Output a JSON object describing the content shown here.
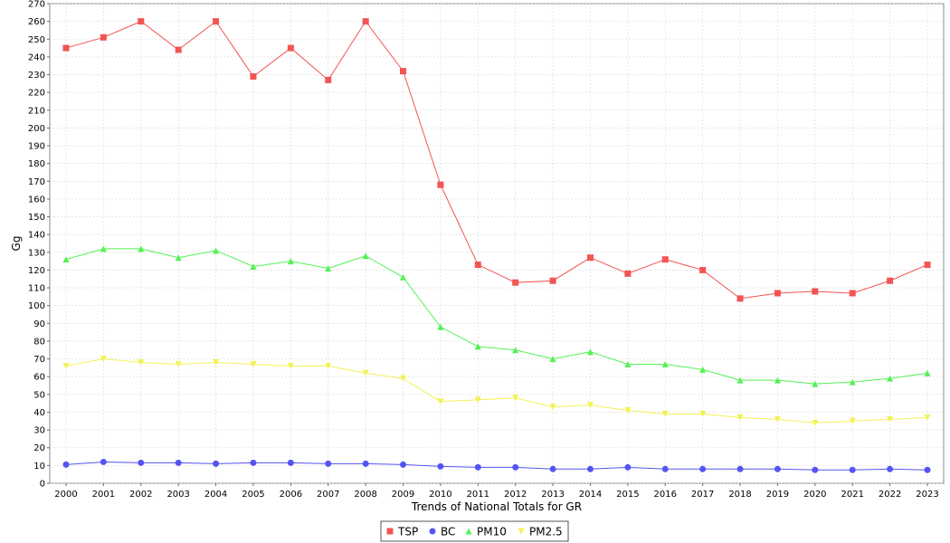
{
  "chart_data": {
    "type": "line",
    "title": "",
    "xlabel": "Trends of National Totals for GR",
    "ylabel": "Gg",
    "ylim": [
      0,
      270
    ],
    "ytick_step": 10,
    "grid": true,
    "legend_position": "bottom-center",
    "categories": [
      "2000",
      "2001",
      "2002",
      "2003",
      "2004",
      "2005",
      "2006",
      "2007",
      "2008",
      "2009",
      "2010",
      "2011",
      "2012",
      "2013",
      "2014",
      "2015",
      "2016",
      "2017",
      "2018",
      "2019",
      "2020",
      "2021",
      "2022",
      "2023"
    ],
    "series": [
      {
        "name": "TSP",
        "color": "#f25454",
        "marker": "square",
        "values": [
          245,
          251,
          260,
          244,
          260,
          229,
          245,
          227,
          260,
          232,
          168,
          123,
          113,
          114,
          127,
          118,
          126,
          120,
          104,
          107,
          108,
          107,
          114,
          123
        ]
      },
      {
        "name": "BC",
        "color": "#5454f2",
        "marker": "circle",
        "values": [
          10.5,
          12,
          11.5,
          11.5,
          11,
          11.5,
          11.5,
          11,
          11,
          10.5,
          9.5,
          9,
          9,
          8,
          8,
          9,
          8,
          8,
          8,
          8,
          7.5,
          7.5,
          8,
          7.5
        ]
      },
      {
        "name": "PM10",
        "color": "#54f254",
        "marker": "triangle",
        "values": [
          126,
          132,
          132,
          127,
          131,
          122,
          125,
          121,
          128,
          116,
          88,
          77,
          75,
          70,
          74,
          67,
          67,
          64,
          58,
          58,
          56,
          57,
          59,
          62
        ]
      },
      {
        "name": "PM2.5",
        "color": "#f2f254",
        "marker": "triangle-down",
        "values": [
          66,
          70,
          68,
          67,
          68,
          67,
          66,
          66,
          62,
          59,
          46,
          47,
          48,
          43,
          44,
          41,
          39,
          39,
          37,
          36,
          34,
          35,
          36,
          37
        ]
      }
    ]
  }
}
